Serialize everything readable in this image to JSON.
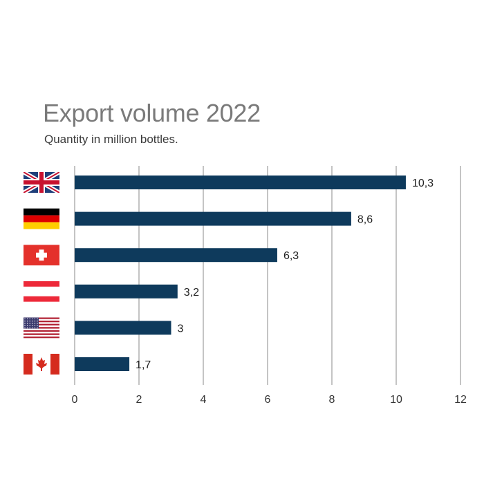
{
  "chart_data": {
    "type": "bar",
    "orientation": "horizontal",
    "title": "Export volume 2022",
    "subtitle": "Quantity in million bottles.",
    "categories": [
      "United Kingdom",
      "Germany",
      "Switzerland",
      "Austria",
      "United States",
      "Canada"
    ],
    "category_icons": [
      "uk-flag",
      "germany-flag",
      "switzerland-flag",
      "austria-flag",
      "usa-flag",
      "canada-flag"
    ],
    "values": [
      10.3,
      8.6,
      6.3,
      3.2,
      3,
      1.7
    ],
    "value_labels": [
      "10,3",
      "8,6",
      "6,3",
      "3,2",
      "3",
      "1,7"
    ],
    "xlim": [
      0,
      12
    ],
    "x_ticks": [
      0,
      2,
      4,
      6,
      8,
      10,
      12
    ],
    "grid": "vertical",
    "bar_color": "#0e3a5c",
    "grid_color": "#b5b5b5"
  }
}
